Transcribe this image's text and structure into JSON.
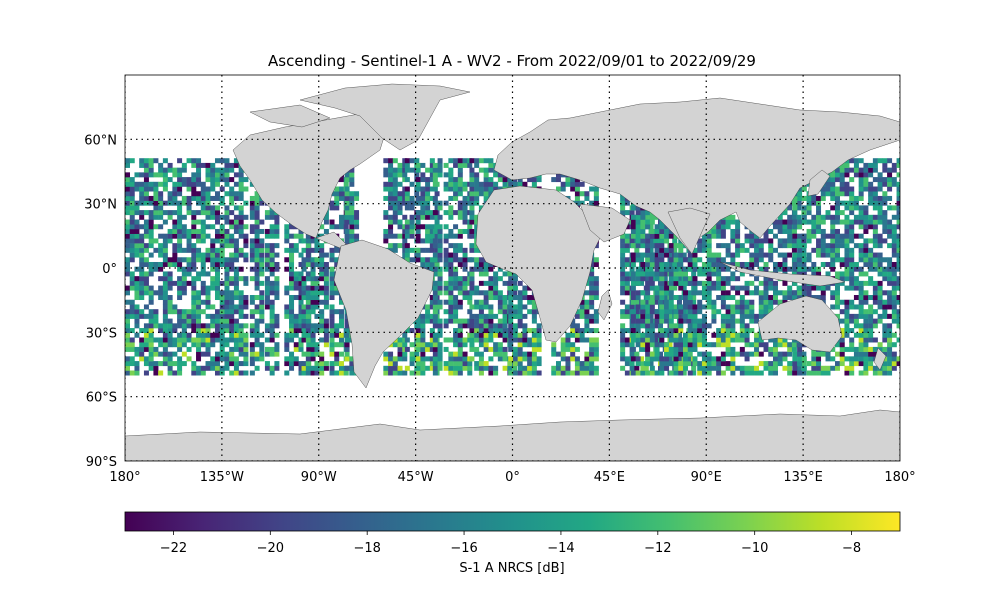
{
  "figure": {
    "title": "Ascending - Sentinel-1 A - WV2 - From 2022/09/01 to 2022/09/29"
  },
  "map": {
    "projection": "plate-carree",
    "lon_range": [
      -180,
      180
    ],
    "lat_range": [
      -90,
      90
    ],
    "grid": "dotted",
    "land_color": "#d3d3d3",
    "ocean_color": "#ffffff",
    "lon_ticks": [
      {
        "value": -180,
        "label": "180°"
      },
      {
        "value": -135,
        "label": "135°W"
      },
      {
        "value": -90,
        "label": "90°W"
      },
      {
        "value": -45,
        "label": "45°W"
      },
      {
        "value": 0,
        "label": "0°"
      },
      {
        "value": 45,
        "label": "45°E"
      },
      {
        "value": 90,
        "label": "90°E"
      },
      {
        "value": 135,
        "label": "135°E"
      },
      {
        "value": 180,
        "label": "180°"
      }
    ],
    "lat_ticks": [
      {
        "value": 60,
        "label": "60°N"
      },
      {
        "value": 30,
        "label": "30°N"
      },
      {
        "value": 0,
        "label": "0°"
      },
      {
        "value": -30,
        "label": "30°S"
      },
      {
        "value": -60,
        "label": "60°S"
      },
      {
        "value": -90,
        "label": "90°S"
      }
    ],
    "data_lat_extent": [
      -50,
      50
    ],
    "swath_regions_lon": [
      [
        -180,
        -124
      ],
      [
        -122,
        -117
      ],
      [
        -115,
        -109
      ],
      [
        -106,
        -98
      ],
      [
        -98,
        -94
      ],
      [
        -96,
        -92
      ],
      [
        -92,
        -86
      ],
      [
        -85,
        -78
      ],
      [
        -78,
        -72
      ],
      [
        -60,
        -50
      ],
      [
        -50,
        -44
      ],
      [
        -45,
        -35
      ],
      [
        -37,
        -33
      ],
      [
        -32,
        -20
      ],
      [
        -20,
        0
      ],
      [
        -2,
        12
      ],
      [
        18,
        40
      ],
      [
        50,
        85
      ],
      [
        55,
        135
      ],
      [
        130,
        180
      ]
    ]
  },
  "colorbar": {
    "label": "S-1 A NRCS [dB]",
    "range": [
      -23,
      -7
    ],
    "colormap": "viridis",
    "ticks": [
      {
        "value": -22,
        "label": "−22"
      },
      {
        "value": -20,
        "label": "−20"
      },
      {
        "value": -18,
        "label": "−18"
      },
      {
        "value": -16,
        "label": "−16"
      },
      {
        "value": -14,
        "label": "−14"
      },
      {
        "value": -12,
        "label": "−12"
      },
      {
        "value": -10,
        "label": "−10"
      },
      {
        "value": -8,
        "label": "−8"
      }
    ]
  }
}
